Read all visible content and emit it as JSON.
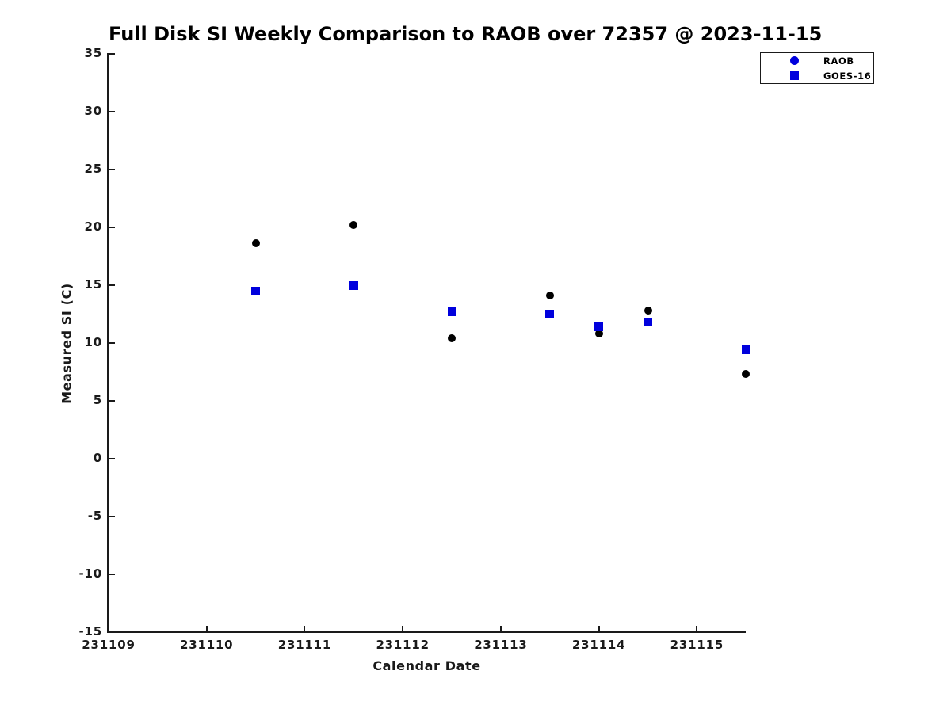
{
  "chart_data": {
    "type": "scatter",
    "title": "Full Disk SI Weekly Comparison to RAOB over 72357 @ 2023-11-15",
    "xlabel": "Calendar Date",
    "ylabel": "Measured SI (C)",
    "xlim": [
      231109,
      231115.49
    ],
    "ylim": [
      -15,
      35
    ],
    "x_ticks": [
      231109,
      231110,
      231111,
      231112,
      231113,
      231114,
      231115
    ],
    "y_ticks": [
      35,
      30,
      25,
      20,
      15,
      10,
      5,
      0,
      -5,
      -10,
      -15
    ],
    "grid": false,
    "legend_position": "top-right",
    "series": [
      {
        "name": "RAOB",
        "marker": "circle",
        "marker_size": 10,
        "color": "#000000",
        "legend_marker_color": "#0000dd",
        "points": [
          [
            231110.5,
            18.6
          ],
          [
            231111.5,
            20.2
          ],
          [
            231112.5,
            10.4
          ],
          [
            231113.5,
            14.1
          ],
          [
            231114.0,
            10.8
          ],
          [
            231114.5,
            12.8
          ],
          [
            231115.5,
            7.3
          ]
        ]
      },
      {
        "name": "GOES-16",
        "marker": "square",
        "marker_size": 11,
        "color": "#0000dd",
        "legend_marker_color": "#0000dd",
        "points": [
          [
            231110.5,
            14.5
          ],
          [
            231111.5,
            15.0
          ],
          [
            231112.5,
            12.7
          ],
          [
            231113.5,
            12.5
          ],
          [
            231114.0,
            11.4
          ],
          [
            231114.5,
            11.8
          ],
          [
            231115.5,
            9.4
          ]
        ]
      }
    ]
  }
}
